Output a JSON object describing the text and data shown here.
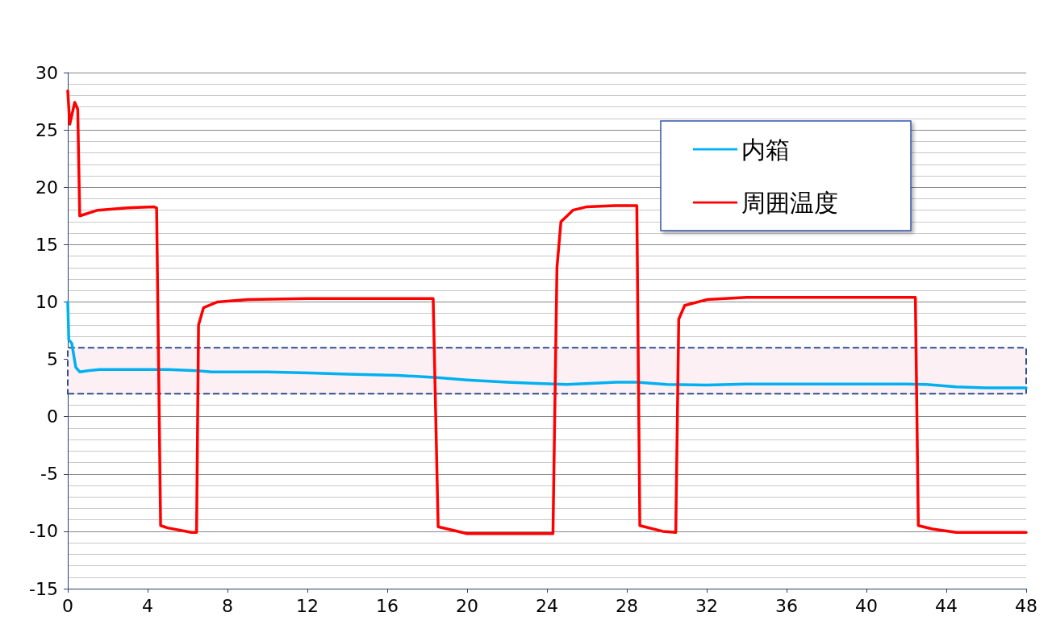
{
  "chart_data": {
    "type": "line",
    "xlim": [
      0,
      48
    ],
    "xticks": [
      0,
      4,
      8,
      12,
      16,
      20,
      24,
      28,
      32,
      36,
      40,
      44,
      48
    ],
    "ylim": [
      -15,
      30
    ],
    "yticks": [
      -15,
      -10,
      -5,
      0,
      5,
      10,
      15,
      20,
      25,
      30
    ],
    "grid": "y",
    "legend": "top right",
    "marker": "none",
    "line_style": "solid",
    "bands": [
      {
        "axis": "y",
        "from": 2,
        "to": 6,
        "color": "#fcf0f5"
      }
    ],
    "series": [
      {
        "name": "内箱",
        "color": "#00b0f0",
        "x": [
          0,
          0.05,
          0.2,
          0.4,
          0.6,
          1,
          1.6,
          5,
          6.5,
          7.2,
          10,
          12.1,
          14,
          16.5,
          18.5,
          20,
          22,
          23.5,
          25,
          27.5,
          28.5,
          30,
          32,
          34,
          42,
          43,
          44.5,
          46,
          48
        ],
        "values": [
          10,
          6.7,
          6.4,
          4.3,
          3.9,
          4.0,
          4.1,
          4.1,
          4.0,
          3.9,
          3.9,
          3.8,
          3.7,
          3.6,
          3.4,
          3.2,
          3.0,
          2.9,
          2.8,
          3.0,
          3.0,
          2.8,
          2.75,
          2.85,
          2.85,
          2.8,
          2.6,
          2.5,
          2.5
        ]
      },
      {
        "name": "周囲温度",
        "color": "#ff0000",
        "x": [
          0,
          0.1,
          0.35,
          0.5,
          0.55,
          0.6,
          1.5,
          3,
          4.3,
          4.45,
          4.65,
          5,
          6.2,
          6.45,
          6.55,
          6.8,
          7.5,
          9,
          12,
          18.3,
          18.55,
          20,
          24.3,
          24.5,
          24.7,
          25.3,
          26,
          27.4,
          28.5,
          28.65,
          29.8,
          30.45,
          30.6,
          30.9,
          32,
          34,
          42.45,
          42.6,
          43.3,
          44.5,
          48
        ],
        "values": [
          28.4,
          25.5,
          27.4,
          26.8,
          22,
          17.5,
          18.0,
          18.2,
          18.3,
          18.2,
          -9.5,
          -9.7,
          -10.1,
          -10.1,
          8,
          9.5,
          10,
          10.2,
          10.3,
          10.3,
          -9.6,
          -10.2,
          -10.2,
          13,
          17,
          18,
          18.3,
          18.4,
          18.4,
          -9.5,
          -10,
          -10.1,
          8.5,
          9.7,
          10.2,
          10.4,
          10.4,
          -9.5,
          -9.8,
          -10.1,
          -10.1
        ]
      }
    ]
  }
}
